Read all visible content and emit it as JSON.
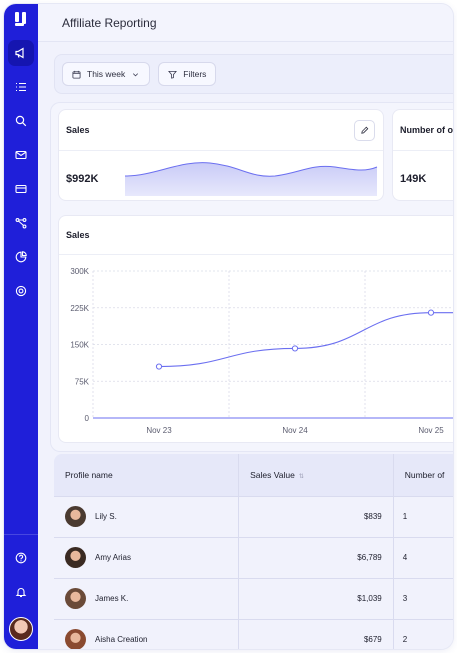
{
  "header": {
    "title": "Affiliate Reporting"
  },
  "toolbar": {
    "date_label": "This week",
    "filters_label": "Filters"
  },
  "kpis": [
    {
      "title": "Sales",
      "value": "$992K"
    },
    {
      "title": "Number of ord",
      "value": "149K"
    }
  ],
  "chart_data": {
    "type": "line",
    "title": "Sales",
    "xlabel": "",
    "ylabel": "",
    "categories": [
      "Nov 23",
      "Nov 24",
      "Nov 25"
    ],
    "x_ticks": [
      "Nov 23",
      "Nov 24",
      "Nov 25"
    ],
    "y_ticks": [
      "0",
      "75K",
      "150K",
      "225K",
      "300K"
    ],
    "ylim": [
      0,
      300000
    ],
    "series": [
      {
        "values": [
          105000,
          142000,
          215000
        ]
      }
    ],
    "grid": true,
    "color": "#6b6ff0"
  },
  "table": {
    "columns": [
      "Profile name",
      "Sales Value",
      "Number of"
    ],
    "rows": [
      {
        "name": "Lily S.",
        "sales": "$839",
        "count": "1",
        "avatar_color": "#4a3a30"
      },
      {
        "name": "Amy Arias",
        "sales": "$6,789",
        "count": "4",
        "avatar_color": "#3a2a22"
      },
      {
        "name": "James K.",
        "sales": "$1,039",
        "count": "3",
        "avatar_color": "#6a4a38"
      },
      {
        "name": "Aisha Creation",
        "sales": "$679",
        "count": "2",
        "avatar_color": "#8a4a30"
      }
    ]
  },
  "colors": {
    "sidebar": "#1f1fd9",
    "accent": "#6b6ff0"
  }
}
